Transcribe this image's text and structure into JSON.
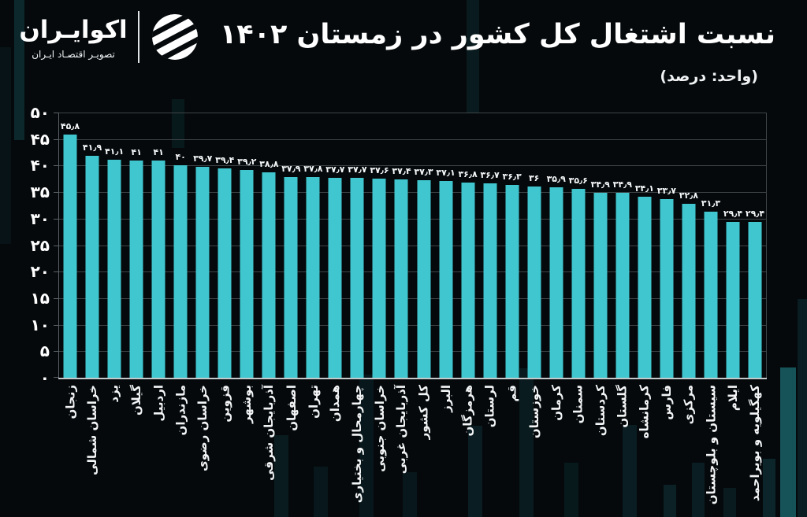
{
  "meta": {
    "background_color": "#05090c",
    "accent_color": "#3fc6ce"
  },
  "header": {
    "brand_name": "اکوایـران",
    "brand_tagline": "تصویـر اقتصـاد ایـران",
    "brand_logo_icon": "ecoiran-striped-sphere-icon",
    "title": "نسبت اشتغال کل کشور در زمستان ۱۴۰۲",
    "subtitle": "(واحد: درصد)"
  },
  "chart_data": {
    "type": "bar",
    "title": "نسبت اشتغال کل کشور در زمستان ۱۴۰۲",
    "unit_label": "(واحد: درصد)",
    "grid": true,
    "legend": false,
    "bar_color": "#3fc6ce",
    "ylim": [
      0,
      50
    ],
    "ytick_step": 5,
    "ytick_values": [
      0,
      5,
      10,
      15,
      20,
      25,
      30,
      35,
      40,
      45,
      50
    ],
    "ytick_labels": [
      "۰",
      "۵",
      "۱۰",
      "۱۵",
      "۲۰",
      "۲۵",
      "۳۰",
      "۳۵",
      "۴۰",
      "۴۵",
      "۵۰"
    ],
    "categories": [
      "زنجان",
      "خراسان شمالی",
      "یزد",
      "گیلان",
      "اردبیل",
      "مازندران",
      "خراسان رضوی",
      "قزوین",
      "بوشهر",
      "آذربایجان شرقی",
      "اصفهان",
      "تهران",
      "همدان",
      "چهارمحال و بختیاری",
      "خراسان جنوبی",
      "آذربایجان غربی",
      "کل کشور",
      "البرز",
      "هرمزگان",
      "لرستان",
      "قم",
      "خوزستان",
      "کرمان",
      "سمنان",
      "کردستان",
      "گلستان",
      "کرمانشاه",
      "فارس",
      "مرکزی",
      "سیستان و بلوچستان",
      "ایلام",
      "کهگیلویه و بویراحمد"
    ],
    "values": [
      45.8,
      41.9,
      41.1,
      41,
      41,
      40,
      39.7,
      39.4,
      39.2,
      38.8,
      37.9,
      37.8,
      37.7,
      37.7,
      37.6,
      37.4,
      37.3,
      37.1,
      36.8,
      36.7,
      36.3,
      36,
      35.9,
      35.6,
      34.9,
      34.9,
      34.1,
      33.7,
      32.8,
      31.3,
      29.4,
      29.4
    ],
    "value_labels": [
      "۴۵٫۸",
      "۴۱٫۹",
      "۴۱٫۱",
      "۴۱",
      "۴۱",
      "۴۰",
      "۳۹٫۷",
      "۳۹٫۴",
      "۳۹٫۲",
      "۳۸٫۸",
      "۳۷٫۹",
      "۳۷٫۸",
      "۳۷٫۷",
      "۳۷٫۷",
      "۳۷٫۶",
      "۳۷٫۴",
      "۳۷٫۳",
      "۳۷٫۱",
      "۳۶٫۸",
      "۳۶٫۷",
      "۳۶٫۳",
      "۳۶",
      "۳۵٫۹",
      "۳۵٫۶",
      "۳۴٫۹",
      "۳۴٫۹",
      "۳۴٫۱",
      "۳۳٫۷",
      "۳۲٫۸",
      "۳۱٫۳",
      "۲۹٫۴",
      "۲۹٫۴"
    ]
  }
}
